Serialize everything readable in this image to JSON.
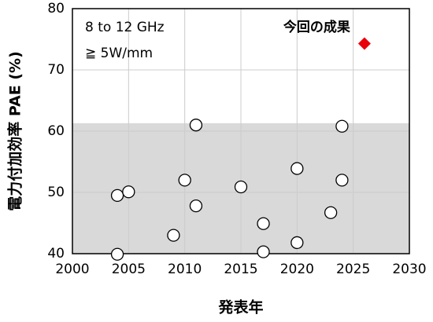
{
  "chart_data": {
    "type": "scatter",
    "xlabel": "発表年",
    "ylabel": "電力付加効率 PAE (%)",
    "annotations": [
      "8 to 12 GHz",
      "≧ 5W/mm"
    ],
    "xlim": [
      2000,
      2030
    ],
    "xticks": [
      2000,
      2005,
      2010,
      2015,
      2020,
      2025,
      2030
    ],
    "ylim": [
      40,
      80
    ],
    "yticks": [
      40,
      50,
      60,
      70,
      80
    ],
    "grid": true,
    "band": {
      "ylim": [
        40,
        61.3
      ],
      "color": "#d9d9d9"
    },
    "series": [
      {
        "color": "#ffffff",
        "marker": "circle",
        "x": [
          2004,
          2005,
          2004,
          2009,
          2010,
          2011,
          2011,
          2015,
          2017,
          2017,
          2020,
          2020,
          2023,
          2024,
          2024
        ],
        "values": [
          49.5,
          50.1,
          39.9,
          43,
          52,
          61,
          47.8,
          50.9,
          44.9,
          40.3,
          53.9,
          41.8,
          46.7,
          60.8,
          52
        ]
      },
      {
        "name": "今回の成果",
        "color": "#e8000b",
        "marker": "diamond",
        "x": [
          2026
        ],
        "values": [
          74.3
        ]
      }
    ]
  }
}
